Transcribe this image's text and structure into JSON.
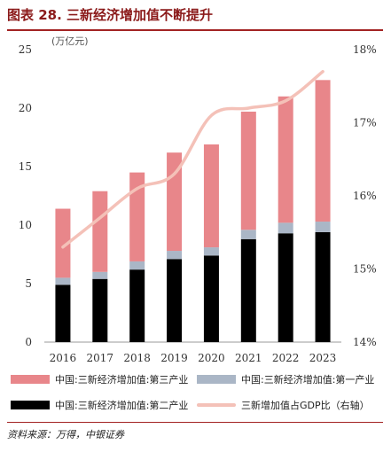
{
  "figure": {
    "title": "图表 28. 三新经济增加值不断提升",
    "source": "资料来源：万得，中银证券"
  },
  "chart_data": {
    "type": "bar",
    "stacked": true,
    "categories": [
      "2016",
      "2017",
      "2018",
      "2019",
      "2020",
      "2021",
      "2022",
      "2023"
    ],
    "unit_label": "(万亿元)",
    "ylim": [
      0,
      25
    ],
    "yticks": [
      0,
      5,
      10,
      15,
      20,
      25
    ],
    "y2lim": [
      14,
      18
    ],
    "y2ticks": [
      "14%",
      "15%",
      "16%",
      "17%",
      "18%"
    ],
    "y2tick_values": [
      14,
      15,
      16,
      17,
      18
    ],
    "series": [
      {
        "name": "中国:三新经济增加值:第二产业",
        "color": "#000000",
        "kind": "bar",
        "values": [
          4.9,
          5.4,
          6.2,
          7.1,
          7.4,
          8.8,
          9.3,
          9.4
        ]
      },
      {
        "name": "中国:三新经济增加值:第一产业",
        "color": "#aab6c6",
        "kind": "bar",
        "values": [
          0.6,
          0.6,
          0.7,
          0.7,
          0.7,
          0.8,
          0.9,
          0.9
        ]
      },
      {
        "name": "中国:三新经济增加值:第三产业",
        "color": "#e8868a",
        "kind": "bar",
        "values": [
          5.9,
          6.9,
          7.6,
          8.4,
          8.8,
          10.1,
          10.8,
          12.1
        ]
      },
      {
        "name": "三新增加值占GDP比（右轴）",
        "color": "#f4c1b8",
        "kind": "line",
        "axis": "right",
        "values": [
          15.3,
          15.7,
          16.1,
          16.3,
          17.1,
          17.2,
          17.3,
          17.7
        ]
      }
    ],
    "legend": {
      "row1_left": "中国:三新经济增加值:第三产业",
      "row1_right": "中国:三新经济增加值:第一产业",
      "row2_left": "中国:三新经济增加值:第二产业",
      "row2_right": "三新增加值占GDP比（右轴）"
    },
    "legend_position": "bottom",
    "grid": false
  }
}
